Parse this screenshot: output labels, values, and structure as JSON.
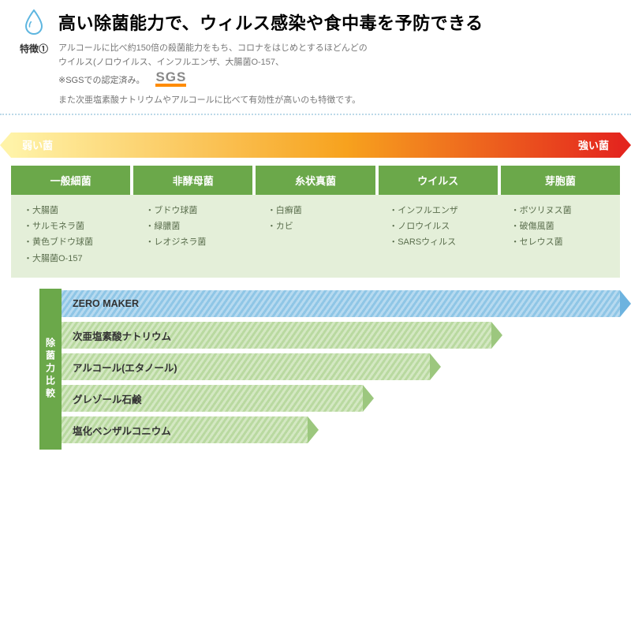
{
  "header": {
    "feature_label": "特徴①",
    "title": "高い除菌能力で、ウィルス感染や食中毒を予防できる",
    "desc_line1": "アルコールに比べ約150倍の殺菌能力をもち、コロナをはじめとするほどんどの",
    "desc_line2": "ウイルス(ノロウイルス、インフルエンザ、大腸菌O-157、",
    "sgs_note": "※SGSでの認定済み。",
    "sgs_logo": "SGS",
    "desc_line3": "また次亜塩素酸ナトリウムやアルコールに比べて有効性が高いのも特徴です。",
    "drop_icon_color": "#5eb6e0"
  },
  "gradient": {
    "left_label": "弱い菌",
    "right_label": "強い菌",
    "left_color": "#fff3a8",
    "right_color": "#e4261e",
    "mid_color": "#f7a21e"
  },
  "bacteria_table": {
    "header_bg": "#6ba84a",
    "body_bg": "#e4efd9",
    "gap_color": "#ffffff",
    "columns": [
      {
        "header": "一般細菌",
        "items": [
          "・大腸菌",
          "・サルモネラ菌",
          "・黄色ブドウ球菌",
          "・大腸菌O-157"
        ]
      },
      {
        "header": "非酵母菌",
        "items": [
          "・ブドウ球菌",
          "・緑膿菌",
          "・レオジネラ菌"
        ]
      },
      {
        "header": "糸状真菌",
        "items": [
          "・白癬菌",
          "・カビ"
        ]
      },
      {
        "header": "ウイルス",
        "items": [
          "・インフルエンザ",
          "・ノロウイルス",
          "・SARSウィルス"
        ]
      },
      {
        "header": "芽胞菌",
        "items": [
          "・ボツリヌス菌",
          "・破傷風菌",
          "・セレウス菌"
        ]
      }
    ]
  },
  "comparison": {
    "label": "除菌力比較",
    "label_bg": "#6ba84a",
    "bars": [
      {
        "label": "ZERO MAKER",
        "width_pct": 100,
        "color1": "#b7daf0",
        "color2": "#8fc6e6",
        "arrow_color": "#6db3df"
      },
      {
        "label": "次亜塩素酸ナトリウム",
        "width_pct": 77,
        "color1": "#d4e8c3",
        "color2": "#b9d9a0",
        "arrow_color": "#9cc77e"
      },
      {
        "label": "アルコール(エタノール)",
        "width_pct": 66,
        "color1": "#d4e8c3",
        "color2": "#b9d9a0",
        "arrow_color": "#9cc77e"
      },
      {
        "label": "グレゾール石鹸",
        "width_pct": 54,
        "color1": "#d4e8c3",
        "color2": "#b9d9a0",
        "arrow_color": "#9cc77e"
      },
      {
        "label": "塩化ベンザルコニウム",
        "width_pct": 44,
        "color1": "#d4e8c3",
        "color2": "#b9d9a0",
        "arrow_color": "#9cc77e"
      }
    ]
  }
}
